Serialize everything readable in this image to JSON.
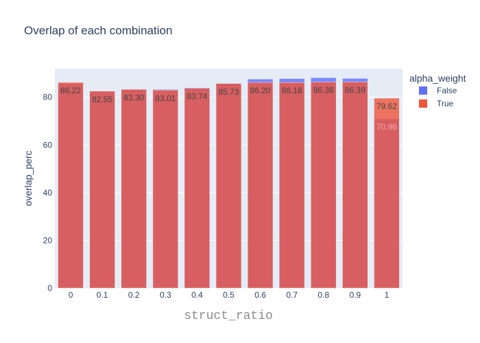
{
  "chart_data": {
    "type": "bar",
    "barmode": "overlay",
    "title": "Overlap of each combination",
    "xlabel": "struct_ratio",
    "ylabel": "overlap_perc",
    "ylim": [
      0,
      92
    ],
    "yticks": [
      0,
      20,
      40,
      60,
      80
    ],
    "grid": true,
    "categories": [
      "0",
      "0.1",
      "0.2",
      "0.3",
      "0.4",
      "0.5",
      "0.6",
      "0.7",
      "0.8",
      "0.9",
      "1"
    ],
    "legend": {
      "title": "alpha_weight",
      "position": "top-right"
    },
    "series": [
      {
        "name": "False",
        "color": "#636efa",
        "values": [
          85.8,
          82.5,
          83.2,
          83.3,
          84.0,
          85.9,
          87.6,
          87.8,
          88.2,
          87.9,
          70.96
        ],
        "labels": [
          "",
          "",
          "",
          "",
          "",
          "",
          "",
          "",
          "",
          "",
          "70.96"
        ]
      },
      {
        "name": "True",
        "color": "#ef553b",
        "values": [
          86.22,
          82.55,
          83.3,
          83.01,
          83.74,
          85.73,
          86.2,
          86.18,
          86.38,
          86.39,
          79.62
        ],
        "labels": [
          "86.22",
          "82.55",
          "83.30",
          "83.01",
          "83.74",
          "85.73",
          "86.20",
          "86.18",
          "86.38",
          "86.39",
          "79.62"
        ]
      }
    ]
  }
}
